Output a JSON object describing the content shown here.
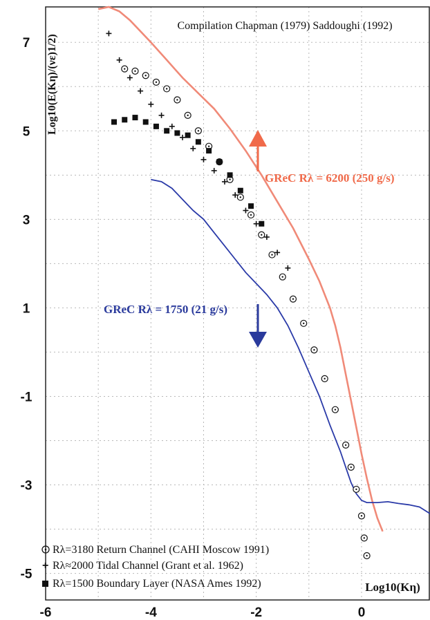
{
  "chart_data": {
    "type": "line",
    "title": "Compilation Chapman (1979) Saddoughi (1992)",
    "xlabel": "Log10(Kη)",
    "ylabel": "Log10(E(Kη)/(νε)1/2)",
    "xlim": [
      -6,
      1.3
    ],
    "ylim": [
      -5.6,
      7.8
    ],
    "x_ticks": [
      "-6",
      "-4",
      "-2",
      "0"
    ],
    "y_ticks": [
      "7",
      "5",
      "3",
      "1",
      "-1",
      "-3",
      "-5"
    ],
    "grid": true,
    "legend_position": "bottom-left",
    "legend": [
      {
        "symbol": "circle-dot",
        "text": "Rλ=3180 Return Channel (CAHI Moscow 1991)"
      },
      {
        "symbol": "plus",
        "text": "Rλ≈2000 Tidal Channel (Grant et al. 1962)"
      },
      {
        "symbol": "filled-square",
        "text": "Rλ=1500 Boundary Layer (NASA Ames 1992)"
      }
    ],
    "annotations": [
      {
        "text": "GReC Rλ = 6200 (250 g/s)",
        "color": "#f06a4a",
        "arrow": "up"
      },
      {
        "text": "GReC Rλ = 1750 (21 g/s)",
        "color": "#2a3a9c",
        "arrow": "down"
      }
    ],
    "series": [
      {
        "name": "GReC Rλ = 6200 (250 g/s)",
        "color": "#f08a78",
        "x": [
          -5.0,
          -4.8,
          -4.6,
          -4.4,
          -4.2,
          -4.0,
          -3.7,
          -3.4,
          -3.1,
          -2.8,
          -2.5,
          -2.2,
          -1.9,
          -1.6,
          -1.3,
          -1.0,
          -0.8,
          -0.6,
          -0.5,
          -0.4,
          -0.3,
          -0.2,
          -0.1,
          0.0,
          0.1,
          0.2,
          0.3,
          0.4
        ],
        "y": [
          7.75,
          7.8,
          7.7,
          7.5,
          7.25,
          7.0,
          6.6,
          6.2,
          5.85,
          5.5,
          5.05,
          4.55,
          4.0,
          3.4,
          2.8,
          2.1,
          1.6,
          1.0,
          0.6,
          0.1,
          -0.5,
          -1.1,
          -1.7,
          -2.3,
          -2.85,
          -3.35,
          -3.75,
          -4.05
        ]
      },
      {
        "name": "GReC Rλ = 1750 (21 g/s)",
        "color": "#2a3aa8",
        "x": [
          -4.0,
          -3.8,
          -3.6,
          -3.4,
          -3.2,
          -3.0,
          -2.8,
          -2.6,
          -2.4,
          -2.2,
          -2.0,
          -1.8,
          -1.6,
          -1.4,
          -1.2,
          -1.0,
          -0.8,
          -0.6,
          -0.4,
          -0.3,
          -0.2,
          -0.1,
          0.0,
          0.1,
          0.3,
          0.5,
          0.7,
          0.9,
          1.1,
          1.3
        ],
        "y": [
          3.9,
          3.85,
          3.7,
          3.45,
          3.2,
          3.0,
          2.7,
          2.4,
          2.1,
          1.8,
          1.55,
          1.3,
          1.0,
          0.6,
          0.1,
          -0.45,
          -1.0,
          -1.65,
          -2.25,
          -2.6,
          -2.95,
          -3.2,
          -3.35,
          -3.4,
          -3.4,
          -3.38,
          -3.42,
          -3.45,
          -3.5,
          -3.65
        ]
      },
      {
        "name": "Rλ=3180 Return Channel (CAHI Moscow 1991)",
        "marker": "circle-dot",
        "x": [
          -4.5,
          -4.3,
          -4.1,
          -3.9,
          -3.7,
          -3.5,
          -3.3,
          -3.1,
          -2.9,
          -2.7,
          -2.5,
          -2.3,
          -2.1,
          -1.9,
          -1.7,
          -1.5,
          -1.3,
          -1.1,
          -0.9,
          -0.7,
          -0.5,
          -0.3,
          -0.2,
          -0.1,
          0.0,
          0.05,
          0.1
        ],
        "y": [
          6.4,
          6.35,
          6.25,
          6.1,
          5.95,
          5.7,
          5.35,
          5.0,
          4.65,
          4.3,
          3.9,
          3.5,
          3.1,
          2.65,
          2.2,
          1.7,
          1.2,
          0.65,
          0.05,
          -0.6,
          -1.3,
          -2.1,
          -2.6,
          -3.1,
          -3.7,
          -4.2,
          -4.6
        ]
      },
      {
        "name": "Rλ≈2000 Tidal Channel (Grant et al. 1962)",
        "marker": "plus",
        "x": [
          -4.8,
          -4.6,
          -4.4,
          -4.2,
          -4.0,
          -3.8,
          -3.6,
          -3.4,
          -3.2,
          -3.0,
          -2.8,
          -2.6,
          -2.4,
          -2.2,
          -2.0,
          -1.8,
          -1.6,
          -1.4
        ],
        "y": [
          7.2,
          6.6,
          6.2,
          5.9,
          5.6,
          5.35,
          5.1,
          4.85,
          4.6,
          4.35,
          4.1,
          3.85,
          3.55,
          3.2,
          2.9,
          2.6,
          2.25,
          1.9
        ]
      },
      {
        "name": "Rλ=1500 Boundary Layer (NASA Ames 1992)",
        "marker": "filled-square",
        "x": [
          -4.7,
          -4.5,
          -4.3,
          -4.1,
          -3.9,
          -3.7,
          -3.5,
          -3.3,
          -3.1,
          -2.9,
          -2.7,
          -2.5,
          -2.3,
          -2.1,
          -1.9
        ],
        "y": [
          5.2,
          5.25,
          5.3,
          5.2,
          5.1,
          5.0,
          4.95,
          4.9,
          4.75,
          4.55,
          4.3,
          4.0,
          3.65,
          3.3,
          2.9
        ]
      }
    ]
  }
}
